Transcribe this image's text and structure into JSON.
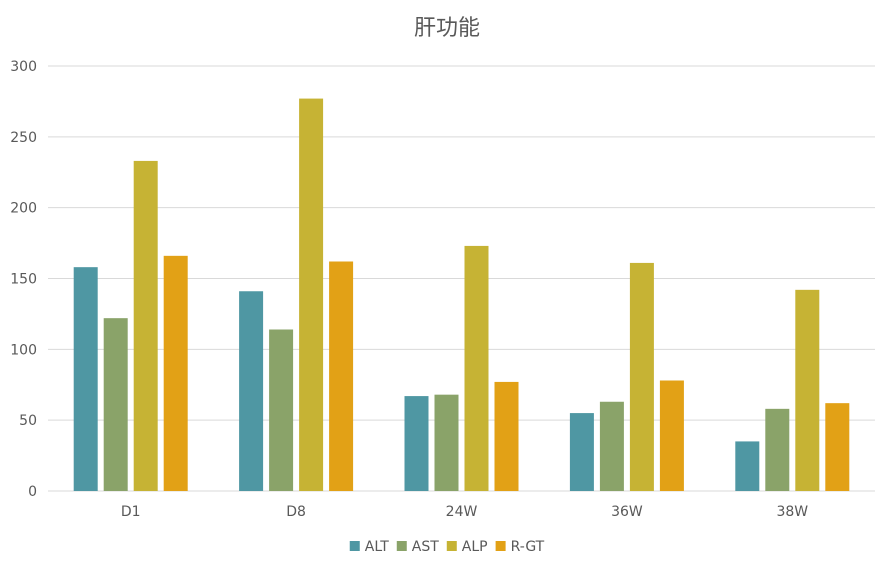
{
  "chart_data": {
    "type": "bar",
    "title": "肝功能",
    "xlabel": "",
    "ylabel": "",
    "ylim": [
      0,
      300
    ],
    "yticks": [
      0,
      50,
      100,
      150,
      200,
      250,
      300
    ],
    "grid": true,
    "legend_position": "bottom",
    "categories": [
      "D1",
      "D8",
      "24W",
      "36W",
      "38W"
    ],
    "series": [
      {
        "name": "ALT",
        "color": "#4f97a3",
        "values": [
          158,
          141,
          67,
          55,
          35
        ]
      },
      {
        "name": "AST",
        "color": "#8aa369",
        "values": [
          122,
          114,
          68,
          63,
          58
        ]
      },
      {
        "name": "ALP",
        "color": "#c6b334",
        "values": [
          233,
          277,
          173,
          161,
          142
        ]
      },
      {
        "name": "R-GT",
        "color": "#e2a116",
        "values": [
          166,
          162,
          77,
          78,
          62
        ]
      }
    ]
  }
}
